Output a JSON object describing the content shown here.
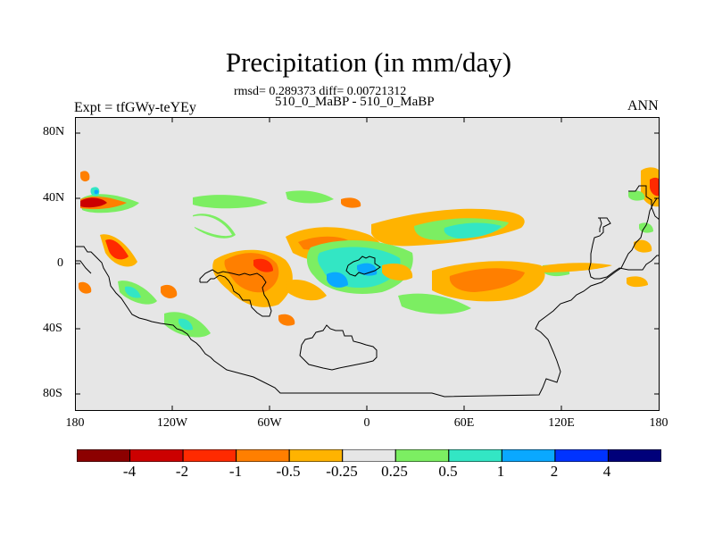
{
  "header": {
    "title": "Precipitation (in mm/day)",
    "stats": "rmsd= 0.289373 diff= 0.00721312",
    "case": "510_0_MaBP - 510_0_MaBP",
    "expt": "Expt = tfGWy-teYEy",
    "season": "ANN"
  },
  "map": {
    "ylabels": [
      "80N",
      "40N",
      "0",
      "40S",
      "80S"
    ],
    "xlabels": [
      "180",
      "120W",
      "60W",
      "0",
      "60E",
      "120E",
      "180"
    ],
    "background_color": "#e6e6e6",
    "coastline_color": "#000000"
  },
  "colorbar": {
    "labels": [
      "-4",
      "-2",
      "-1",
      "-0.5",
      "-0.25",
      "0.25",
      "0.5",
      "1",
      "2",
      "4"
    ],
    "colors": [
      "#8c0000",
      "#cc0000",
      "#ff2a00",
      "#ff7f00",
      "#ffb300",
      "#e6e6e6",
      "#7cee62",
      "#33e6c4",
      "#0aa8ff",
      "#0033ff",
      "#00007a"
    ]
  }
}
